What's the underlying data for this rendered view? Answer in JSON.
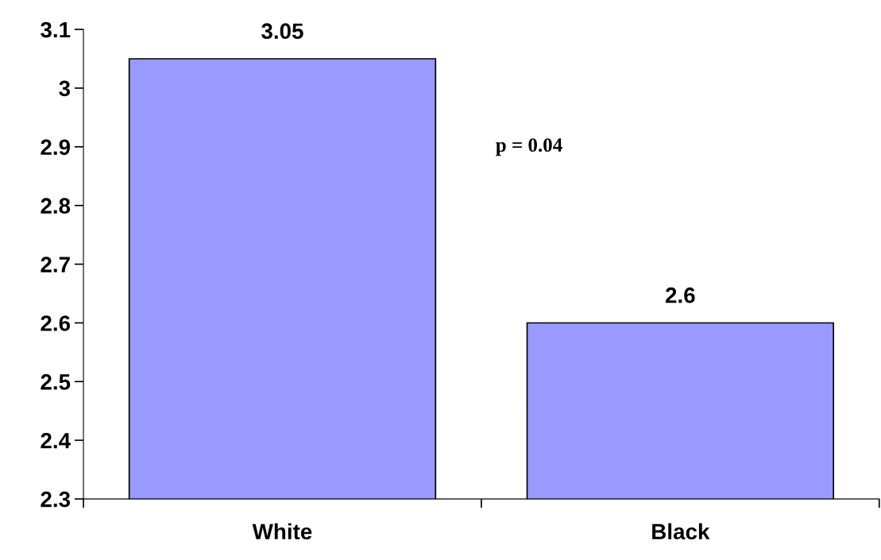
{
  "chart_data": {
    "type": "bar",
    "categories": [
      "White",
      "Black"
    ],
    "values": [
      3.05,
      2.6
    ],
    "color": "#9999ff",
    "ylim": [
      2.3,
      3.1
    ],
    "yticks": [
      2.3,
      2.4,
      2.5,
      2.6,
      2.7,
      2.8,
      2.9,
      3,
      3.1
    ],
    "grid": false,
    "data_labels": true,
    "annotations": [
      "p = 0.04"
    ]
  }
}
